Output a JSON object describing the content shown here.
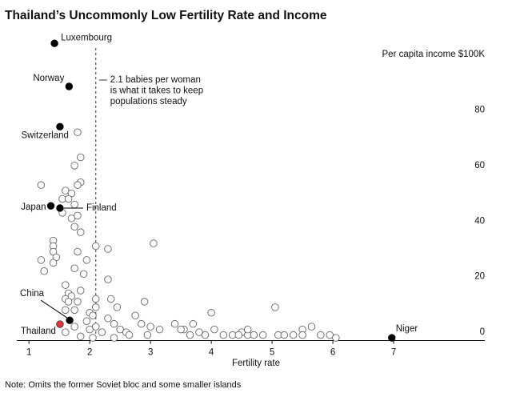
{
  "chart_data": {
    "type": "scatter",
    "title": "Thailand’s Uncommonly Low Fertility Rate and Income",
    "x_label": "Fertility rate",
    "note": "Note: Omits the former Soviet bloc and some smaller islands",
    "xlim": [
      0.8,
      8.5
    ],
    "ylim": [
      -1,
      112
    ],
    "xticks": [
      1,
      2,
      3,
      4,
      5,
      6,
      7
    ],
    "yticks": [
      0,
      20,
      40,
      60,
      80,
      {
        "value": 100,
        "label": "Per capita income $100K"
      }
    ],
    "reference_line": {
      "x": 2.1,
      "text": [
        "2.1 babies per woman",
        "is what it takes to keep",
        "populations steady"
      ]
    },
    "points": {
      "x": [
        1.8,
        1.85,
        1.75,
        1.85,
        1.2,
        1.8,
        1.6,
        1.7,
        1.55,
        1.65,
        1.75,
        1.55,
        1.7,
        1.8,
        1.75,
        1.85,
        1.4,
        1.4,
        1.4,
        1.45,
        1.2,
        1.4,
        1.8,
        2.1,
        2.3,
        1.95,
        1.75,
        1.25,
        1.9,
        2.3,
        1.6,
        1.85,
        1.65,
        1.7,
        1.6,
        2.1,
        1.8,
        2.35,
        1.65,
        1.6,
        1.75,
        2.1,
        2.0,
        2.45,
        2.05,
        1.95,
        2.3,
        1.75,
        1.6,
        2.0,
        2.2,
        2.1,
        2.4,
        2.5,
        2.6,
        2.4,
        2.9,
        2.75,
        2.85,
        3.0,
        2.65,
        2.95,
        3.05,
        3.15,
        3.4,
        3.55,
        3.7,
        3.65,
        3.8,
        3.9,
        4.0,
        4.05,
        4.2,
        4.35,
        4.5,
        4.6,
        4.7,
        4.85,
        5.05,
        5.1,
        5.2,
        5.35,
        5.5,
        5.65,
        5.8,
        5.95,
        6.05,
        2.05,
        1.85,
        3.5,
        4.45,
        4.6,
        5.5
      ],
      "y": [
        74,
        65,
        62,
        56,
        55,
        55,
        53,
        52,
        50,
        50,
        48,
        45,
        43,
        44,
        40,
        38,
        35,
        33,
        31,
        29,
        28,
        27,
        31,
        33,
        32,
        28,
        25,
        24,
        23,
        21,
        19,
        17,
        16,
        15,
        14,
        14,
        13,
        14,
        13,
        10,
        10,
        11,
        9,
        11,
        8,
        6,
        7,
        4,
        2,
        3,
        2,
        4,
        5,
        3,
        2,
        0,
        13,
        8,
        5,
        4,
        1,
        1,
        34,
        3,
        5,
        3,
        5,
        1,
        2,
        1,
        9,
        3,
        1,
        1,
        2,
        1,
        1,
        1,
        11,
        1,
        1,
        1,
        3,
        4,
        1,
        1,
        0,
        0,
        0.5,
        3,
        1,
        3,
        1
      ]
    },
    "labeled_points": [
      {
        "label": "Luxembourg",
        "x": 1.42,
        "y": 106,
        "color": "#000000"
      },
      {
        "label": "Norway",
        "x": 1.66,
        "y": 90.5,
        "color": "#000000"
      },
      {
        "label": "Switzerland",
        "x": 1.51,
        "y": 76,
        "color": "#000000"
      },
      {
        "label": "Japan",
        "x": 1.36,
        "y": 47.5,
        "color": "#000000"
      },
      {
        "label": "Finland",
        "x": 1.51,
        "y": 46.7,
        "color": "#000000"
      },
      {
        "label": "China",
        "x": 1.67,
        "y": 6.3,
        "color": "#000000"
      },
      {
        "label": "Thailand",
        "x": 1.51,
        "y": 4.9,
        "color": "#e0333c"
      },
      {
        "label": "Niger",
        "x": 6.97,
        "y": 0,
        "color": "#000000"
      }
    ]
  }
}
